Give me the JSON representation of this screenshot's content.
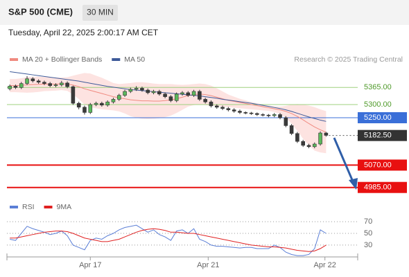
{
  "header": {
    "title": "S&P 500 (CME)",
    "timeframe": "30 MIN",
    "timestamp": "Tuesday, April 22, 2025 2:00:17 AM CET",
    "credit": "Research © 2025 Trading Central"
  },
  "chart_data": [
    {
      "type": "candlestick",
      "xlim": [
        0,
        61
      ],
      "ylim": [
        4950,
        5450
      ],
      "up_color": "#5cb85c",
      "down_color": "#3a3a3a",
      "open": [
        5360,
        5370,
        5365,
        5380,
        5398,
        5390,
        5385,
        5380,
        5372,
        5375,
        5382,
        5368,
        5305,
        5290,
        5270,
        5300,
        5305,
        5298,
        5310,
        5320,
        5335,
        5350,
        5358,
        5362,
        5355,
        5345,
        5350,
        5340,
        5330,
        5315,
        5340,
        5345,
        5335,
        5350,
        5320,
        5310,
        5295,
        5290,
        5285,
        5280,
        5275,
        5270,
        5268,
        5266,
        5262,
        5260,
        5258,
        5262,
        5250,
        5220,
        5190,
        5160,
        5145,
        5140,
        5150,
        5192
      ],
      "high": [
        5376,
        5376,
        5386,
        5408,
        5404,
        5396,
        5391,
        5386,
        5381,
        5390,
        5388,
        5372,
        5311,
        5296,
        5306,
        5311,
        5311,
        5316,
        5326,
        5341,
        5356,
        5364,
        5370,
        5368,
        5361,
        5356,
        5356,
        5346,
        5336,
        5346,
        5351,
        5351,
        5356,
        5356,
        5326,
        5316,
        5301,
        5296,
        5291,
        5286,
        5281,
        5274,
        5272,
        5270,
        5267,
        5264,
        5268,
        5268,
        5256,
        5226,
        5196,
        5166,
        5151,
        5156,
        5198,
        5196
      ],
      "low": [
        5354,
        5359,
        5359,
        5374,
        5384,
        5379,
        5374,
        5366,
        5366,
        5369,
        5362,
        5299,
        5282,
        5262,
        5264,
        5294,
        5292,
        5292,
        5304,
        5314,
        5329,
        5344,
        5352,
        5349,
        5339,
        5339,
        5334,
        5324,
        5309,
        5309,
        5334,
        5329,
        5329,
        5314,
        5304,
        5289,
        5284,
        5279,
        5274,
        5269,
        5264,
        5263,
        5261,
        5257,
        5255,
        5252,
        5252,
        5244,
        5214,
        5184,
        5154,
        5139,
        5134,
        5134,
        5144,
        5178
      ],
      "close": [
        5370,
        5365,
        5380,
        5398,
        5390,
        5385,
        5380,
        5372,
        5375,
        5382,
        5368,
        5305,
        5290,
        5270,
        5300,
        5305,
        5298,
        5310,
        5320,
        5335,
        5350,
        5358,
        5362,
        5355,
        5345,
        5350,
        5340,
        5330,
        5315,
        5340,
        5345,
        5335,
        5350,
        5320,
        5310,
        5295,
        5290,
        5285,
        5280,
        5275,
        5270,
        5268,
        5266,
        5262,
        5260,
        5258,
        5262,
        5250,
        5220,
        5190,
        5160,
        5145,
        5140,
        5150,
        5192,
        5183
      ],
      "series": [
        {
          "name": "MA 20 + Bollinger Bands",
          "color": "#f08a80",
          "values": [
            5372,
            5372,
            5373,
            5375,
            5376,
            5377,
            5378,
            5378,
            5378,
            5379,
            5378,
            5374,
            5368,
            5360,
            5354,
            5348,
            5342,
            5336,
            5330,
            5326,
            5322,
            5318,
            5316,
            5314,
            5314,
            5313,
            5313,
            5315,
            5318,
            5322,
            5328,
            5334,
            5338,
            5340,
            5338,
            5334,
            5328,
            5322,
            5316,
            5312,
            5308,
            5304,
            5300,
            5296,
            5292,
            5288,
            5284,
            5280,
            5274,
            5266,
            5255,
            5242,
            5228,
            5215,
            5204,
            5195
          ]
        },
        {
          "name": "MA 50",
          "color": "#3d5a99",
          "values": [
            5425,
            5422,
            5419,
            5416,
            5413,
            5410,
            5407,
            5404,
            5401,
            5398,
            5395,
            5392,
            5389,
            5385,
            5381,
            5377,
            5373,
            5369,
            5366,
            5363,
            5360,
            5357,
            5355,
            5353,
            5351,
            5349,
            5347,
            5345,
            5343,
            5341,
            5339,
            5337,
            5335,
            5333,
            5330,
            5327,
            5324,
            5320,
            5317,
            5314,
            5311,
            5308,
            5305,
            5301,
            5297,
            5293,
            5289,
            5285,
            5280,
            5274,
            5267,
            5260,
            5253,
            5247,
            5241,
            5236
          ]
        }
      ],
      "band": {
        "color": "#fde3e1",
        "upper": [
          5397,
          5397,
          5400,
          5405,
          5406,
          5406,
          5405,
          5404,
          5403,
          5403,
          5404,
          5410,
          5415,
          5420,
          5418,
          5410,
          5402,
          5392,
          5382,
          5378,
          5380,
          5382,
          5385,
          5385,
          5383,
          5380,
          5378,
          5378,
          5378,
          5376,
          5375,
          5376,
          5378,
          5380,
          5378,
          5372,
          5362,
          5350,
          5338,
          5330,
          5322,
          5316,
          5310,
          5305,
          5300,
          5296,
          5293,
          5292,
          5295,
          5300,
          5302,
          5300,
          5296,
          5290,
          5282,
          5275
        ],
        "lower": [
          5347,
          5347,
          5346,
          5345,
          5346,
          5348,
          5351,
          5352,
          5353,
          5355,
          5352,
          5338,
          5321,
          5300,
          5290,
          5286,
          5282,
          5280,
          5278,
          5274,
          5266,
          5256,
          5250,
          5246,
          5245,
          5246,
          5248,
          5252,
          5258,
          5268,
          5280,
          5292,
          5298,
          5300,
          5298,
          5296,
          5294,
          5292,
          5290,
          5288,
          5286,
          5284,
          5282,
          5280,
          5278,
          5276,
          5272,
          5264,
          5250,
          5228,
          5200,
          5170,
          5145,
          5125,
          5118,
          5115
        ]
      },
      "levels": [
        {
          "value": 5365,
          "label": "5365.00",
          "line": "thin",
          "color": "#9fd07f",
          "box": null,
          "text_color": "#4f9a2a"
        },
        {
          "value": 5300,
          "label": "5300.00",
          "line": "thin",
          "color": "#9fd07f",
          "box": null,
          "text_color": "#4f9a2a"
        },
        {
          "value": 5250,
          "label": "5250.00",
          "line": "solid",
          "color": "#3a6fd8",
          "box": "#3a6fd8",
          "text_color": "#ffffff"
        },
        {
          "value": 5182.5,
          "label": "5182.50",
          "line": "dotted",
          "color": "#555555",
          "box": "#333333",
          "text_color": "#ffffff"
        },
        {
          "value": 5070,
          "label": "5070.00",
          "line": "thick",
          "color": "#e81010",
          "box": "#e81010",
          "text_color": "#ffffff"
        },
        {
          "value": 4985,
          "label": "4985.00",
          "line": "thick",
          "color": "#e81010",
          "box": "#e81010",
          "text_color": "#ffffff"
        }
      ]
    },
    {
      "type": "line",
      "xlim": [
        0,
        61
      ],
      "ylim": [
        11,
        76
      ],
      "yticks": [
        30,
        50,
        70
      ],
      "xticks": [
        {
          "value": 14.5,
          "label": "Apr 17"
        },
        {
          "value": 35,
          "label": "Apr 21"
        },
        {
          "value": 55.3,
          "label": "Apr 22"
        }
      ],
      "series": [
        {
          "name": "RSI",
          "color": "#5b7fd6",
          "values": [
            40,
            38,
            50,
            62,
            58,
            55,
            52,
            48,
            50,
            54,
            46,
            30,
            26,
            22,
            38,
            42,
            40,
            46,
            50,
            56,
            60,
            62,
            64,
            58,
            52,
            56,
            48,
            44,
            38,
            54,
            56,
            50,
            58,
            40,
            36,
            30,
            28,
            28,
            27,
            26,
            25,
            26,
            26,
            24,
            24,
            24,
            30,
            26,
            18,
            14,
            12,
            12,
            14,
            24,
            56,
            50
          ]
        },
        {
          "name": "9MA",
          "color": "#e02020",
          "values": [
            42,
            42,
            44,
            46,
            48,
            50,
            52,
            53,
            54,
            54,
            53,
            50,
            46,
            42,
            40,
            38,
            36,
            36,
            38,
            40,
            44,
            48,
            52,
            55,
            57,
            58,
            57,
            55,
            52,
            52,
            51,
            50,
            50,
            48,
            46,
            44,
            42,
            40,
            38,
            36,
            34,
            32,
            30,
            29,
            28,
            27,
            27,
            26,
            25,
            23,
            21,
            20,
            19,
            20,
            24,
            30
          ]
        }
      ]
    }
  ]
}
